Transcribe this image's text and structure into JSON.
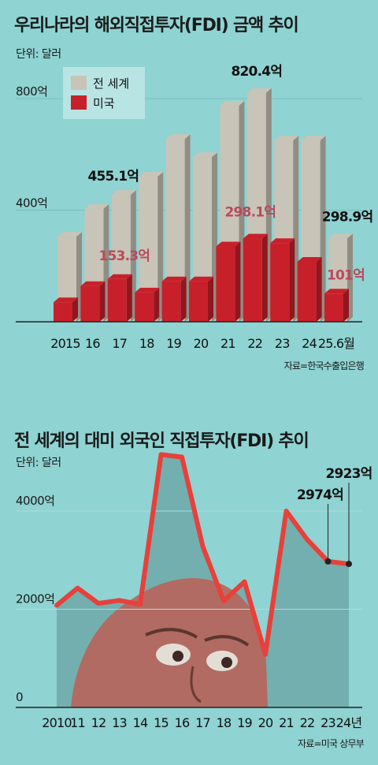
{
  "chart1": {
    "title": "우리나라의 해외직접투자(FDI) 금액 추이",
    "unit": "단위: 달러",
    "source": "자료=한국수출입은행",
    "legend": [
      "전 세계",
      "미국"
    ],
    "colors": {
      "world": "#c8c4b8",
      "us": "#c8202a"
    }
  },
  "chart2": {
    "title": "전 세계의 대미 외국인 직접투자(FDI) 추이",
    "unit": "단위: 달러",
    "source": "자료=미국 상무부",
    "colors": {
      "line": "#e8403a",
      "area": "#6fa8a8"
    }
  },
  "chart_data": [
    {
      "type": "bar",
      "title": "우리나라의 해외직접투자(FDI) 금액 추이",
      "ylabel": "단위: 달러",
      "categories": [
        "2015",
        "16",
        "17",
        "18",
        "19",
        "20",
        "21",
        "22",
        "23",
        "24",
        "25.6월"
      ],
      "series": [
        {
          "name": "전 세계",
          "values": [
            305,
            405,
            455.1,
            520,
            655,
            590,
            775,
            820.4,
            650,
            650,
            298.9
          ]
        },
        {
          "name": "미국",
          "values": [
            70,
            128,
            153.3,
            105,
            145,
            145,
            270,
            298.1,
            282,
            215,
            101
          ]
        }
      ],
      "yticks": [
        {
          "v": 400,
          "label": "400억"
        },
        {
          "v": 800,
          "label": "800억"
        }
      ],
      "ylim": [
        0,
        900
      ],
      "annotations": [
        {
          "series": 0,
          "index": 2,
          "text": "455.1억"
        },
        {
          "series": 0,
          "index": 7,
          "text": "820.4억"
        },
        {
          "series": 0,
          "index": 10,
          "text": "298.9억"
        },
        {
          "series": 1,
          "index": 2,
          "text": "153.3억"
        },
        {
          "series": 1,
          "index": 7,
          "text": "298.1억"
        },
        {
          "series": 1,
          "index": 10,
          "text": "101억"
        }
      ]
    },
    {
      "type": "line",
      "title": "전 세계의 대미 외국인 직접투자(FDI) 추이",
      "ylabel": "단위: 달러",
      "x": [
        "2010",
        "11",
        "12",
        "13",
        "14",
        "15",
        "16",
        "17",
        "18",
        "19",
        "20",
        "21",
        "22",
        "23",
        "24년"
      ],
      "series": [
        {
          "values": [
            2080,
            2430,
            2120,
            2180,
            2100,
            5150,
            5100,
            3280,
            2170,
            2560,
            1080,
            4000,
            3420,
            2974,
            2923
          ]
        }
      ],
      "yticks": [
        {
          "v": 0,
          "label": "0"
        },
        {
          "v": 2000,
          "label": "2000억"
        },
        {
          "v": 4000,
          "label": "4000억"
        }
      ],
      "ylim": [
        0,
        5500
      ],
      "annotations": [
        {
          "index": 13,
          "text": "2974억"
        },
        {
          "index": 14,
          "text": "2923억"
        }
      ]
    }
  ]
}
